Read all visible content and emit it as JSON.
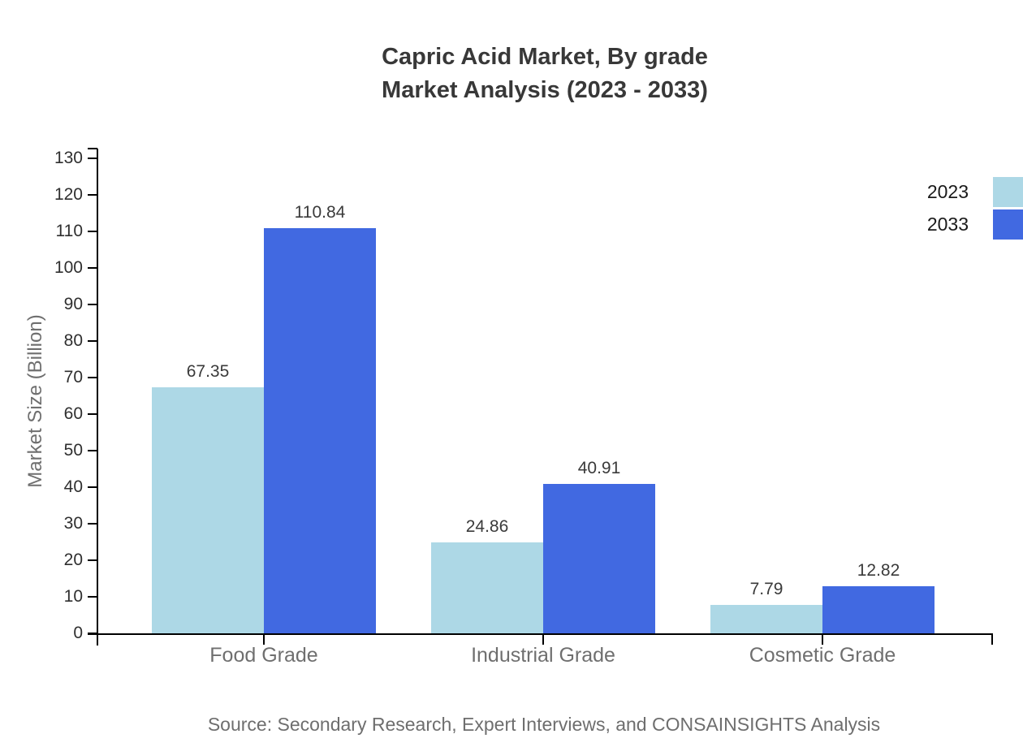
{
  "title": {
    "line1": "Capric Acid Market, By grade",
    "line2": "Market Analysis (2023 - 2033)"
  },
  "source_note": "Source: Secondary Research, Expert Interviews, and CONSAINSIGHTS Analysis",
  "axes": {
    "y_label": "Market Size (Billion)",
    "y_ticks": [
      0,
      10,
      20,
      30,
      40,
      50,
      60,
      70,
      80,
      90,
      100,
      110,
      120,
      130
    ]
  },
  "legend": {
    "position": "top-right",
    "entries": [
      {
        "label": "2023",
        "color": "#ADD8E6"
      },
      {
        "label": "2033",
        "color": "#4169E1"
      }
    ]
  },
  "colors": {
    "series_2023": "#ADD8E6",
    "series_2033": "#4169E1",
    "axis": "#000000",
    "title_text": "#383838",
    "muted_text": "#6f6f6f"
  },
  "chart_data": {
    "type": "bar",
    "title": "Capric Acid Market, By grade Market Analysis (2023 - 2033)",
    "categories": [
      "Food Grade",
      "Industrial Grade",
      "Cosmetic Grade"
    ],
    "series": [
      {
        "name": "2023",
        "color": "#ADD8E6",
        "values": [
          67.35,
          24.86,
          7.79
        ]
      },
      {
        "name": "2033",
        "color": "#4169E1",
        "values": [
          110.84,
          40.91,
          12.82
        ]
      }
    ],
    "xlabel": "",
    "ylabel": "Market Size (Billion)",
    "ylim": [
      0,
      130
    ],
    "y_tick_step": 10,
    "grid": false,
    "legend_position": "top-right",
    "data_labels": true
  }
}
